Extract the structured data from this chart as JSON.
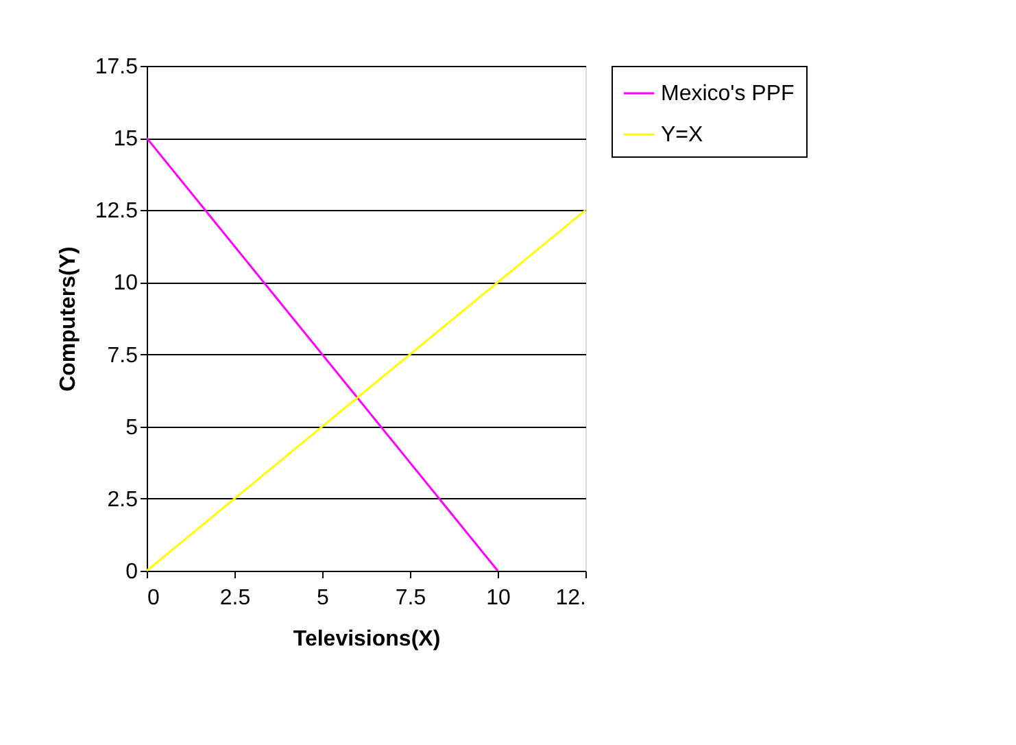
{
  "chart_data": {
    "type": "line",
    "xlabel": "Televisions(X)",
    "ylabel": "Computers(Y)",
    "series": [
      {
        "name": "Mexico's PPF",
        "color": "#ff00ff",
        "x": [
          0,
          10
        ],
        "values": [
          15,
          0
        ]
      },
      {
        "name": "Y=X",
        "color": "#ffff00",
        "x": [
          0,
          12.5
        ],
        "values": [
          0,
          12.5
        ]
      }
    ],
    "xlim": [
      0,
      12.5
    ],
    "xticks": [
      0,
      2.5,
      5,
      7.5,
      10,
      {
        "value": 12.5,
        "label": "12."
      }
    ],
    "ylim": [
      0,
      17.5
    ],
    "yticks": [
      0,
      2.5,
      5,
      7.5,
      10,
      12.5,
      15,
      17.5
    ],
    "grid": "y",
    "legend": "right",
    "marker": "none",
    "line_style": "solid"
  }
}
